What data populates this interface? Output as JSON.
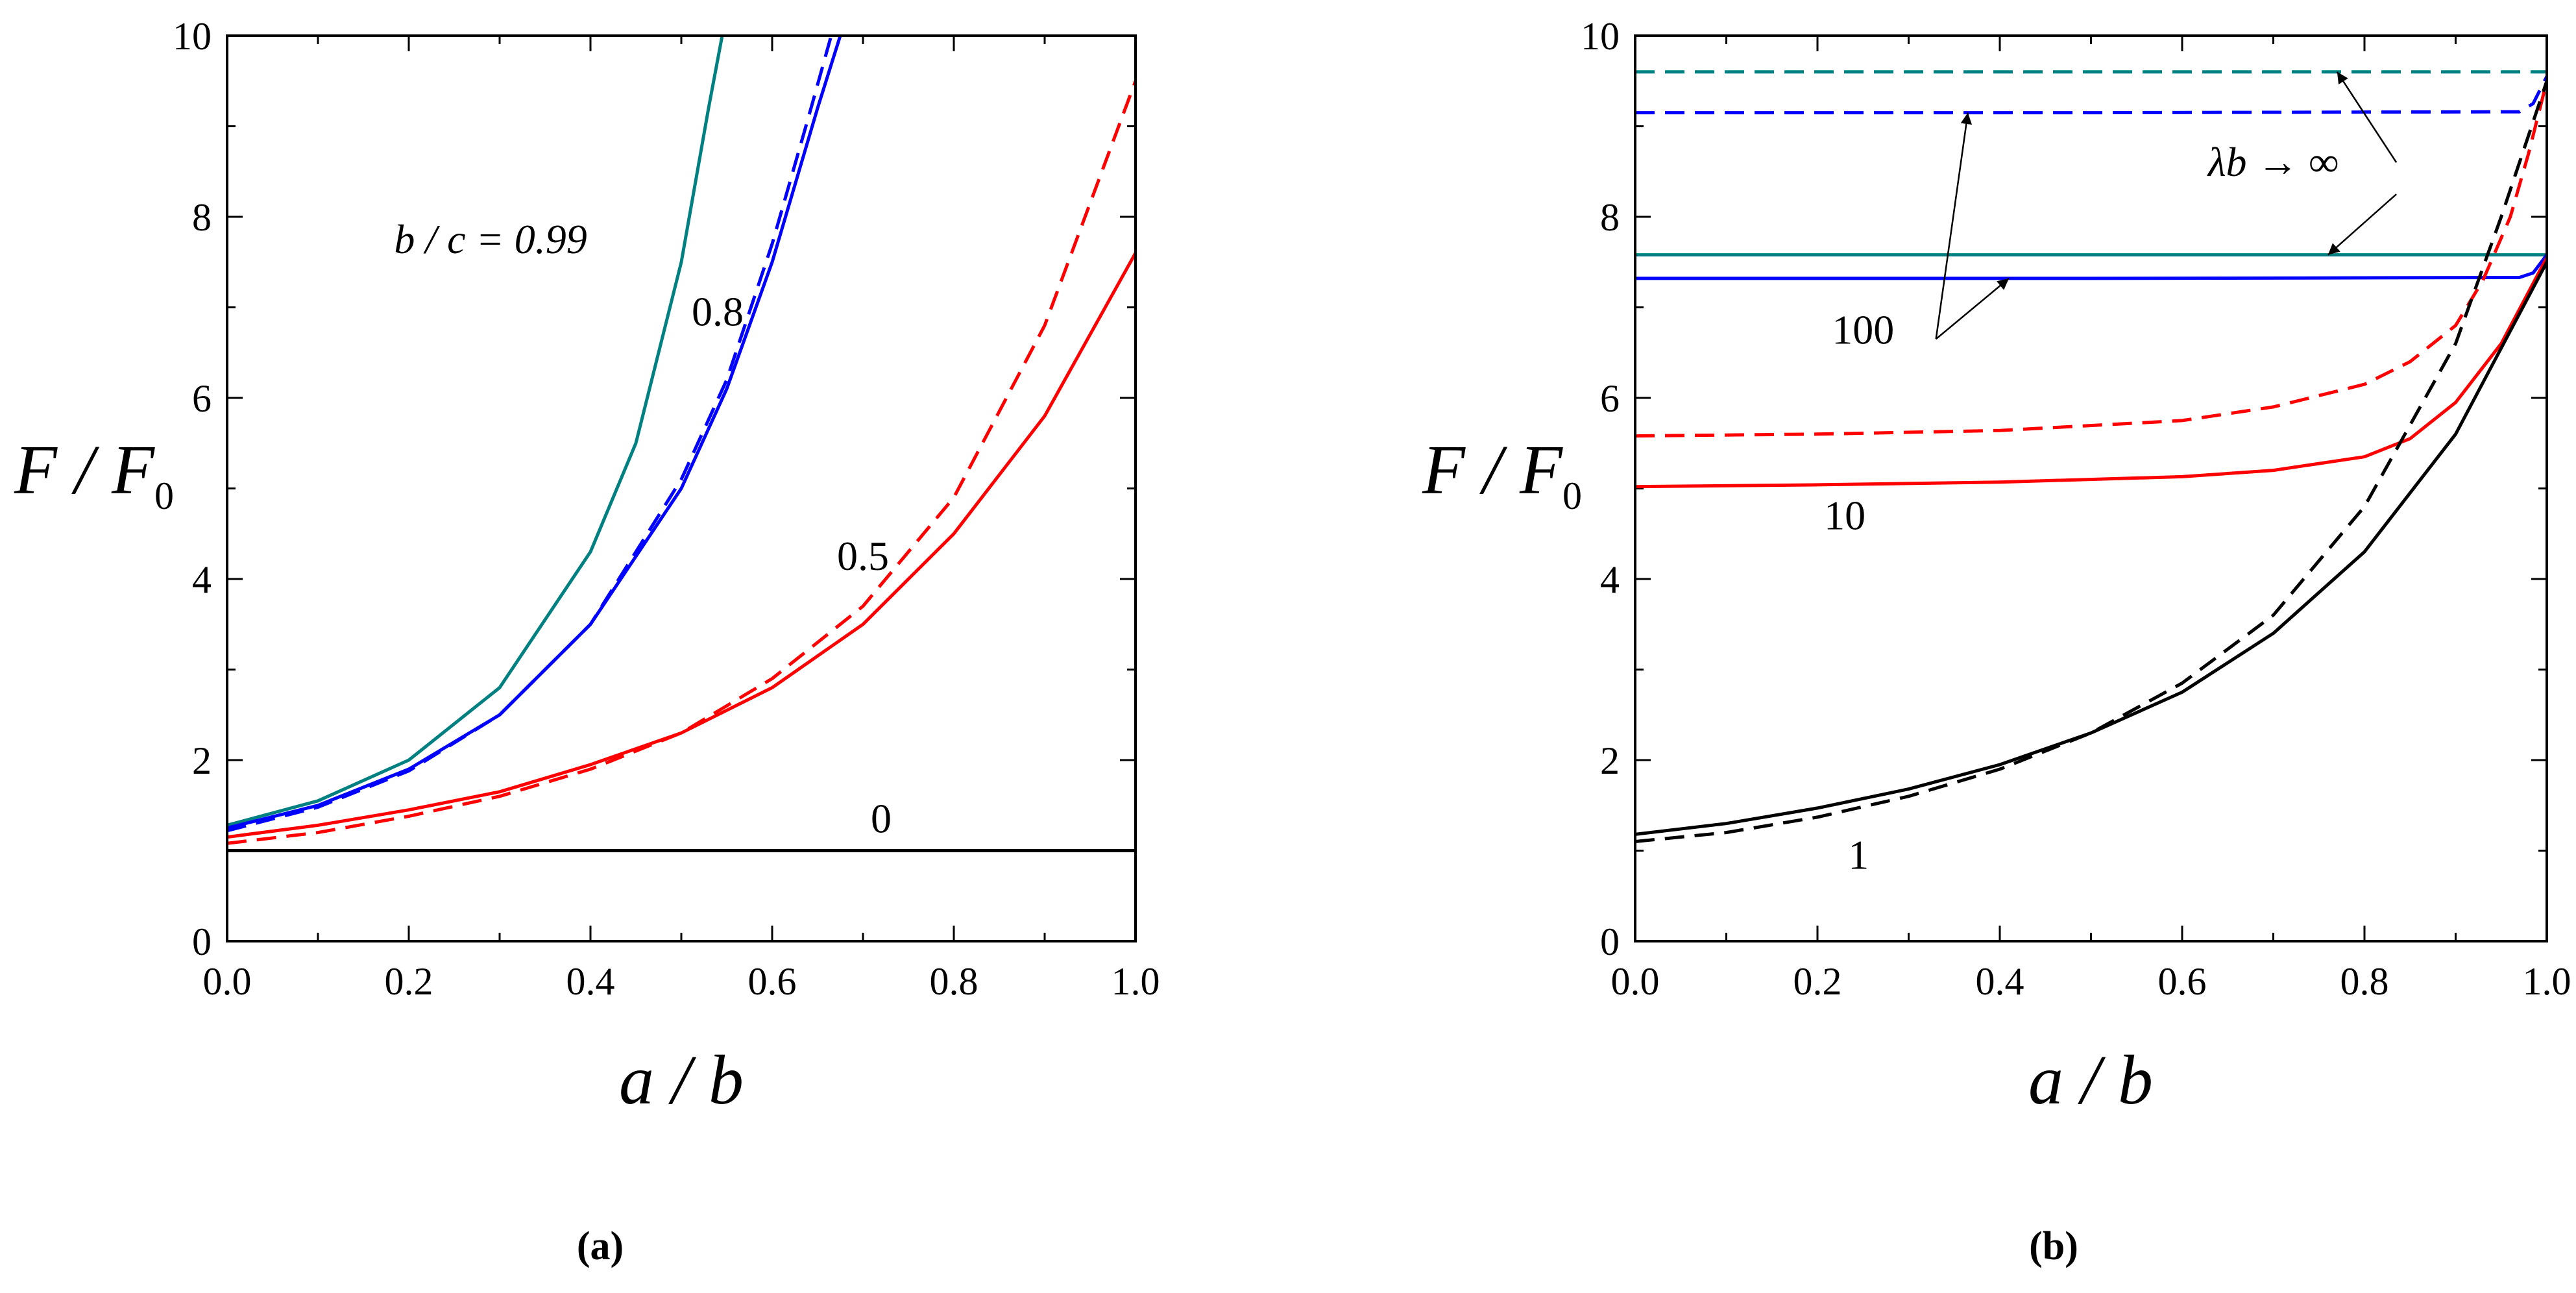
{
  "chart_data": [
    {
      "panel_label": "(a)",
      "type": "line",
      "xlabel": "a / b",
      "ylabel_main": "F / F",
      "ylabel_sub": "0",
      "xlim": [
        0,
        1
      ],
      "ylim": [
        0,
        10
      ],
      "x_ticks": [
        "0.0",
        "0.2",
        "0.4",
        "0.6",
        "0.8",
        "1.0"
      ],
      "y_ticks": [
        "0",
        "2",
        "4",
        "6",
        "8",
        "10"
      ],
      "annotations": [
        {
          "text": "b / c = 0.99",
          "x": 0.29,
          "y": 7.6,
          "italic": true
        },
        {
          "text": "0.8",
          "x": 0.54,
          "y": 6.8
        },
        {
          "text": "0.5",
          "x": 0.7,
          "y": 4.1
        },
        {
          "text": "0",
          "x": 0.72,
          "y": 1.2
        }
      ],
      "series": [
        {
          "name": "b/c=0.99 solid",
          "color": "#008080",
          "dash": false,
          "x": [
            0,
            0.1,
            0.2,
            0.3,
            0.4,
            0.45,
            0.5,
            0.53,
            0.545
          ],
          "y": [
            1.28,
            1.55,
            2.0,
            2.8,
            4.3,
            5.5,
            7.5,
            9.2,
            10.0
          ]
        },
        {
          "name": "b/c=0.8 solid",
          "color": "#0000ff",
          "dash": false,
          "x": [
            0,
            0.1,
            0.2,
            0.3,
            0.4,
            0.5,
            0.55,
            0.6,
            0.65,
            0.675
          ],
          "y": [
            1.25,
            1.5,
            1.9,
            2.5,
            3.5,
            5.0,
            6.1,
            7.5,
            9.2,
            10.0
          ]
        },
        {
          "name": "b/c=0.8 dashed",
          "color": "#0000ff",
          "dash": true,
          "x": [
            0,
            0.1,
            0.2,
            0.3,
            0.4,
            0.5,
            0.55,
            0.6,
            0.64,
            0.665
          ],
          "y": [
            1.22,
            1.48,
            1.88,
            2.5,
            3.5,
            5.1,
            6.2,
            7.7,
            9.1,
            10.0
          ]
        },
        {
          "name": "b/c=0.5 solid",
          "color": "#ff0000",
          "dash": false,
          "x": [
            0,
            0.1,
            0.2,
            0.3,
            0.4,
            0.5,
            0.6,
            0.7,
            0.8,
            0.9,
            1.0
          ],
          "y": [
            1.15,
            1.28,
            1.45,
            1.65,
            1.95,
            2.3,
            2.8,
            3.5,
            4.5,
            5.8,
            7.6
          ]
        },
        {
          "name": "b/c=0.5 dashed",
          "color": "#ff0000",
          "dash": true,
          "x": [
            0,
            0.1,
            0.2,
            0.3,
            0.4,
            0.5,
            0.6,
            0.7,
            0.8,
            0.9,
            1.0
          ],
          "y": [
            1.08,
            1.2,
            1.38,
            1.6,
            1.9,
            2.3,
            2.9,
            3.7,
            4.9,
            6.8,
            9.5
          ]
        },
        {
          "name": "b/c=0 solid",
          "color": "#000000",
          "dash": false,
          "x": [
            0,
            1.0
          ],
          "y": [
            1.0,
            1.0
          ]
        }
      ]
    },
    {
      "panel_label": "(b)",
      "type": "line",
      "xlabel": "a / b",
      "ylabel_main": "F / F",
      "ylabel_sub": "0",
      "xlim": [
        0,
        1
      ],
      "ylim": [
        0,
        10
      ],
      "x_ticks": [
        "0.0",
        "0.2",
        "0.4",
        "0.6",
        "0.8",
        "1.0"
      ],
      "y_ticks": [
        "0",
        "2",
        "4",
        "6",
        "8",
        "10"
      ],
      "annotations": [
        {
          "text": "λb → ∞",
          "x": 0.7,
          "y": 8.45,
          "italic": true
        },
        {
          "text": "100",
          "x": 0.25,
          "y": 6.6
        },
        {
          "text": "10",
          "x": 0.23,
          "y": 4.55
        },
        {
          "text": "1",
          "x": 0.245,
          "y": 0.8
        }
      ],
      "arrows": [
        {
          "from": [
            0.835,
            8.6
          ],
          "to": [
            0.77,
            9.6
          ]
        },
        {
          "from": [
            0.835,
            8.25
          ],
          "to": [
            0.76,
            7.58
          ]
        },
        {
          "from": [
            0.33,
            6.65
          ],
          "to": [
            0.365,
            9.15
          ]
        },
        {
          "from": [
            0.33,
            6.65
          ],
          "to": [
            0.41,
            7.32
          ]
        }
      ],
      "series": [
        {
          "name": "λb→∞ dashed",
          "color": "#008080",
          "dash": true,
          "x": [
            0,
            1.0
          ],
          "y": [
            9.6,
            9.6
          ]
        },
        {
          "name": "100 dashed",
          "color": "#0000ff",
          "dash": true,
          "x": [
            0,
            0.5,
            0.97,
            0.985,
            1.0
          ],
          "y": [
            9.15,
            9.15,
            9.16,
            9.25,
            9.55
          ]
        },
        {
          "name": "λb→∞ solid",
          "color": "#008080",
          "dash": false,
          "x": [
            0,
            1.0
          ],
          "y": [
            7.58,
            7.58
          ]
        },
        {
          "name": "100 solid",
          "color": "#0000ff",
          "dash": false,
          "x": [
            0,
            0.5,
            0.97,
            0.985,
            1.0
          ],
          "y": [
            7.32,
            7.32,
            7.33,
            7.38,
            7.58
          ]
        },
        {
          "name": "10 dashed",
          "color": "#ff0000",
          "dash": true,
          "x": [
            0,
            0.2,
            0.4,
            0.6,
            0.7,
            0.8,
            0.85,
            0.9,
            0.93,
            0.96,
            0.98,
            1.0
          ],
          "y": [
            5.58,
            5.6,
            5.64,
            5.75,
            5.9,
            6.15,
            6.4,
            6.8,
            7.3,
            8.0,
            8.7,
            9.5
          ]
        },
        {
          "name": "10 solid",
          "color": "#ff0000",
          "dash": false,
          "x": [
            0,
            0.2,
            0.4,
            0.6,
            0.7,
            0.8,
            0.85,
            0.9,
            0.95,
            1.0
          ],
          "y": [
            5.02,
            5.04,
            5.07,
            5.13,
            5.2,
            5.35,
            5.55,
            5.95,
            6.6,
            7.55
          ]
        },
        {
          "name": "1 solid",
          "color": "#000000",
          "dash": false,
          "x": [
            0,
            0.1,
            0.2,
            0.3,
            0.4,
            0.5,
            0.6,
            0.7,
            0.8,
            0.9,
            1.0
          ],
          "y": [
            1.18,
            1.3,
            1.47,
            1.68,
            1.95,
            2.3,
            2.75,
            3.4,
            4.3,
            5.6,
            7.5
          ]
        },
        {
          "name": "1 dashed",
          "color": "#000000",
          "dash": true,
          "x": [
            0,
            0.1,
            0.2,
            0.3,
            0.4,
            0.5,
            0.6,
            0.7,
            0.8,
            0.9,
            0.95,
            1.0
          ],
          "y": [
            1.1,
            1.2,
            1.37,
            1.6,
            1.9,
            2.3,
            2.85,
            3.6,
            4.8,
            6.6,
            8.0,
            9.5
          ]
        }
      ]
    }
  ]
}
